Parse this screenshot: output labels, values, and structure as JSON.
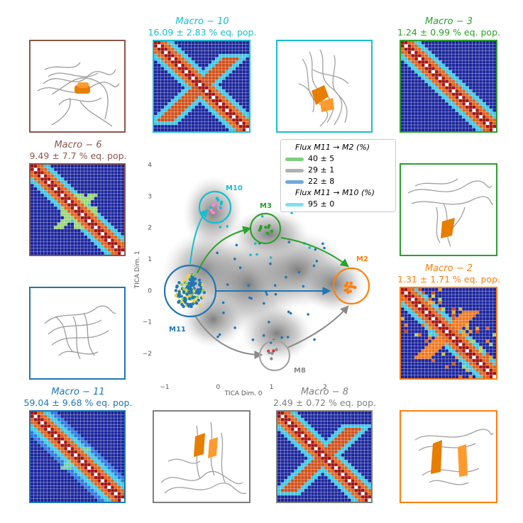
{
  "macrostates": [
    {
      "id": "macro10",
      "name": "Macro − 10",
      "pop": "16.09 ± 2.83 % eq. pop.",
      "color": "#17becf"
    },
    {
      "id": "macro3",
      "name": "Macro − 3",
      "pop": "1.24 ± 0.99 % eq. pop.",
      "color": "#2ca02c"
    },
    {
      "id": "macro6",
      "name": "Macro − 6",
      "pop": "9.49 ± 7.7 % eq. pop.",
      "color": "#8c564b"
    },
    {
      "id": "macro2",
      "name": "Macro − 2",
      "pop": "1.31 ± 1.71 % eq. pop.",
      "color": "#ff7f0e"
    },
    {
      "id": "macro11",
      "name": "Macro − 11",
      "pop": "59.04 ± 9.68 % eq. pop.",
      "color": "#1f77b4"
    },
    {
      "id": "macro8",
      "name": "Macro − 8",
      "pop": "2.49 ± 0.72 % eq. pop.",
      "color": "#7f7f7f"
    }
  ],
  "legend": {
    "header1": "Flux M11 → M2 (%)",
    "header2": "Flux M11 → M10 (%)",
    "entries": [
      {
        "label": "40 ± 5",
        "color": "#7fcf7f"
      },
      {
        "label": "29 ± 1",
        "color": "#b0b0b0"
      },
      {
        "label": "22 ± 8",
        "color": "#6fa8dc"
      },
      {
        "label": "95 ± 0",
        "color": "#7fe0ea"
      }
    ]
  },
  "node_labels": {
    "m10": "M10",
    "m3": "M3",
    "m2": "M2",
    "m11": "M11",
    "m8": "M8"
  },
  "chart_data": {
    "type": "scatter",
    "xlabel": "TICA Dim. 0",
    "ylabel": "TICA Dim. 1",
    "xticks": [
      "−1",
      "0",
      "1",
      "2"
    ],
    "yticks": [
      "4",
      "3",
      "2",
      "1",
      "0",
      "−1",
      "−2"
    ],
    "xlim": [
      -1.2,
      2.8
    ],
    "ylim": [
      -2.6,
      4.2
    ],
    "nodes": [
      {
        "name": "M11",
        "x": -0.55,
        "y": 0.0,
        "color": "#1f77b4"
      },
      {
        "name": "M10",
        "x": 0.0,
        "y": 2.75,
        "color": "#17becf"
      },
      {
        "name": "M3",
        "x": 0.95,
        "y": 1.95,
        "color": "#2ca02c"
      },
      {
        "name": "M2",
        "x": 2.6,
        "y": 0.2,
        "color": "#ff7f0e"
      },
      {
        "name": "M8",
        "x": 1.15,
        "y": -1.95,
        "color": "#7f7f7f"
      }
    ],
    "grid": false
  }
}
